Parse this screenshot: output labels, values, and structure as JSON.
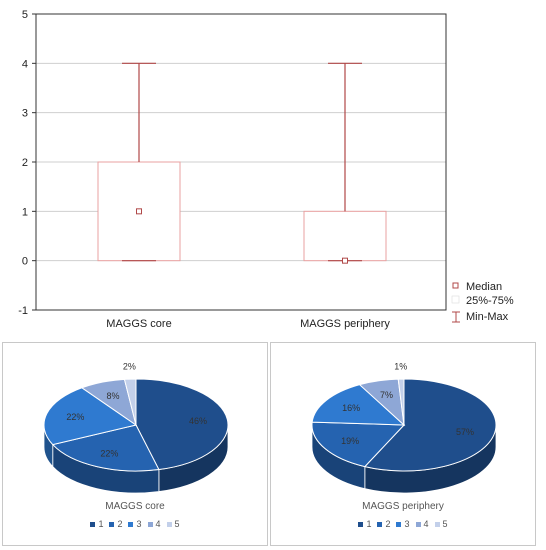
{
  "chart_data": [
    {
      "type": "box",
      "categories": [
        "MAGGS core",
        "MAGGS periphery"
      ],
      "boxes": [
        {
          "category": "MAGGS core",
          "min": 0,
          "q1": 0,
          "median": 1,
          "q3": 2,
          "max": 4
        },
        {
          "category": "MAGGS periphery",
          "min": 0,
          "q1": 0,
          "median": 0,
          "q3": 1,
          "max": 4
        }
      ],
      "ylim": [
        -1,
        5
      ],
      "yticks": [
        "-1",
        "0",
        "1",
        "2",
        "3",
        "4",
        "5"
      ],
      "grid": true,
      "legend": {
        "position": "bottom-right",
        "items": [
          "Median",
          "25%-75%",
          "Min-Max"
        ]
      },
      "colors": {
        "whisker": "#b04848",
        "box": "#e8a0a0",
        "grid": "#cfcfcf"
      }
    },
    {
      "type": "pie",
      "title": "MAGGS core",
      "labels": [
        "1",
        "2",
        "3",
        "4",
        "5"
      ],
      "values": [
        46,
        22,
        22,
        8,
        2
      ],
      "data_labels": [
        "46%",
        "22%",
        "22%",
        "8%",
        "2%"
      ],
      "colors": [
        "#1f4e8c",
        "#2563b0",
        "#2f7ad0",
        "#8ea7d6",
        "#c3d0ea"
      ]
    },
    {
      "type": "pie",
      "title": "MAGGS periphery",
      "labels": [
        "1",
        "2",
        "3",
        "4",
        "5"
      ],
      "values": [
        57,
        19,
        16,
        7,
        1
      ],
      "data_labels": [
        "57%",
        "19%",
        "16%",
        "7%",
        "1%"
      ],
      "colors": [
        "#1f4e8c",
        "#2563b0",
        "#2f7ad0",
        "#8ea7d6",
        "#c3d0ea"
      ]
    }
  ]
}
